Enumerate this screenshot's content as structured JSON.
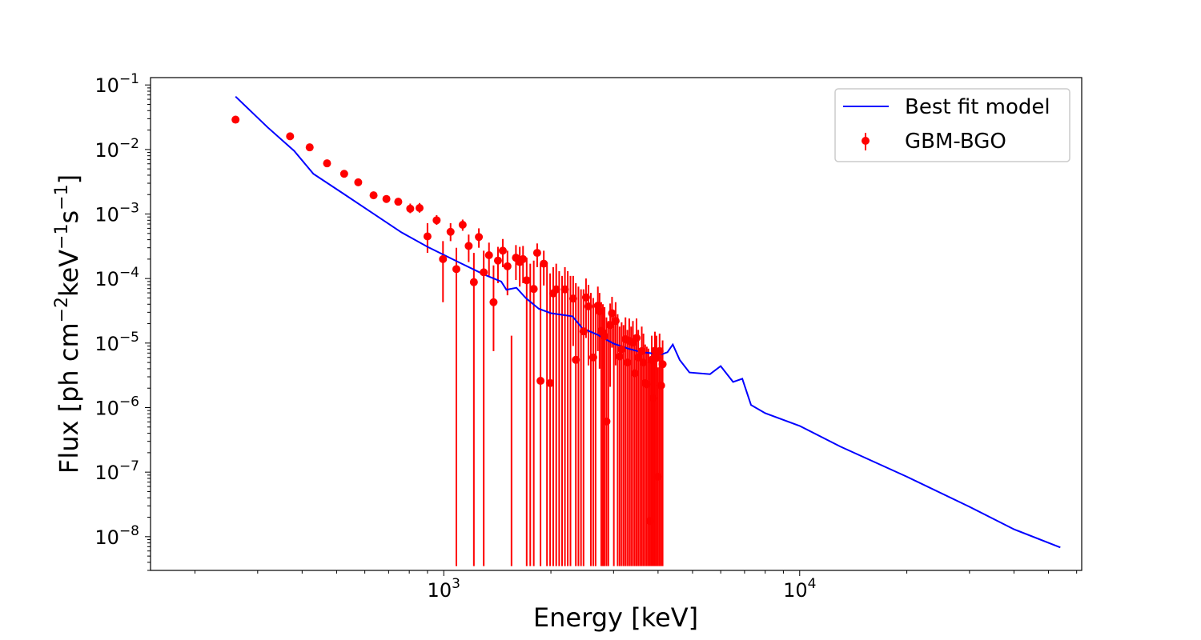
{
  "chart_data": {
    "type": "scatter",
    "xlabel": "Energy [keV]",
    "ylabel": "Flux [ph cm^-2 keV^-1 s^-1]",
    "ylabel_parts": {
      "a": "Flux [ph cm",
      "e1": "−2",
      "b": "keV",
      "e2": "−1",
      "c": "s",
      "e3": "−1",
      "d": "]"
    },
    "x_scale": "log",
    "y_scale": "log",
    "xlim": [
      150,
      62000
    ],
    "ylim": [
      3e-09,
      0.13
    ],
    "x_ticks": [
      {
        "base": "10",
        "exp": "3",
        "value": 1000
      },
      {
        "base": "10",
        "exp": "4",
        "value": 10000
      }
    ],
    "y_ticks": [
      {
        "base": "10",
        "exp": "−1",
        "value": 0.1
      },
      {
        "base": "10",
        "exp": "−2",
        "value": 0.01
      },
      {
        "base": "10",
        "exp": "−3",
        "value": 0.001
      },
      {
        "base": "10",
        "exp": "−4",
        "value": 0.0001
      },
      {
        "base": "10",
        "exp": "−5",
        "value": 1e-05
      },
      {
        "base": "10",
        "exp": "−6",
        "value": 1e-06
      },
      {
        "base": "10",
        "exp": "−7",
        "value": 1e-07
      },
      {
        "base": "10",
        "exp": "−8",
        "value": 1e-08
      }
    ],
    "legend": {
      "position": "upper right",
      "entries": [
        "Best fit model",
        "GBM-BGO"
      ]
    },
    "series": [
      {
        "name": "Best fit model",
        "kind": "line",
        "color": "#0000ff",
        "points": [
          [
            260,
            0.066
          ],
          [
            320,
            0.022
          ],
          [
            380,
            0.0095
          ],
          [
            430,
            0.0042
          ],
          [
            520,
            0.0021
          ],
          [
            620,
            0.0011
          ],
          [
            760,
            0.00052
          ],
          [
            900,
            0.00031
          ],
          [
            1100,
            0.00018
          ],
          [
            1300,
            0.000115
          ],
          [
            1450,
            9e-05
          ],
          [
            1500,
            6.7e-05
          ],
          [
            1600,
            7.2e-05
          ],
          [
            1700,
            5e-05
          ],
          [
            1850,
            3.4e-05
          ],
          [
            2000,
            2.9e-05
          ],
          [
            2300,
            2.6e-05
          ],
          [
            2450,
            1.7e-05
          ],
          [
            2700,
            1.35e-05
          ],
          [
            3000,
            9.8e-06
          ],
          [
            3300,
            8.2e-06
          ],
          [
            3600,
            7.2e-06
          ],
          [
            4100,
            6.7e-06
          ],
          [
            4250,
            7.2e-06
          ],
          [
            4400,
            9.5e-06
          ],
          [
            4600,
            5.5e-06
          ],
          [
            4900,
            3.5e-06
          ],
          [
            5600,
            3.3e-06
          ],
          [
            6000,
            4.4e-06
          ],
          [
            6500,
            2.5e-06
          ],
          [
            6900,
            2.8e-06
          ],
          [
            7300,
            1.1e-06
          ],
          [
            8000,
            8.2e-07
          ],
          [
            10000,
            5.2e-07
          ],
          [
            13000,
            2.5e-07
          ],
          [
            20000,
            8.5e-08
          ],
          [
            30000,
            2.9e-08
          ],
          [
            40000,
            1.3e-08
          ],
          [
            54000,
            6.8e-09
          ]
        ]
      },
      {
        "name": "GBM-BGO",
        "kind": "errorbar",
        "color": "#ff0000",
        "points": [
          {
            "x": 260,
            "y": 0.029,
            "lo": 0.029,
            "hi": 0.029
          },
          {
            "x": 370,
            "y": 0.016,
            "lo": 0.016,
            "hi": 0.016
          },
          {
            "x": 420,
            "y": 0.0108,
            "lo": 0.0108,
            "hi": 0.0108
          },
          {
            "x": 470,
            "y": 0.0061,
            "lo": 0.0061,
            "hi": 0.0061
          },
          {
            "x": 525,
            "y": 0.0042,
            "lo": 0.0042,
            "hi": 0.0042
          },
          {
            "x": 575,
            "y": 0.0031,
            "lo": 0.0031,
            "hi": 0.0031
          },
          {
            "x": 635,
            "y": 0.00195,
            "lo": 0.00195,
            "hi": 0.00195
          },
          {
            "x": 690,
            "y": 0.00171,
            "lo": 0.00171,
            "hi": 0.00171
          },
          {
            "x": 745,
            "y": 0.00155,
            "lo": 0.00155,
            "hi": 0.00155
          },
          {
            "x": 805,
            "y": 0.00121,
            "lo": 0.00103,
            "hi": 0.00145
          },
          {
            "x": 855,
            "y": 0.00124,
            "lo": 0.00105,
            "hi": 0.00148
          },
          {
            "x": 900,
            "y": 0.00045,
            "lo": 0.00025,
            "hi": 0.00072
          },
          {
            "x": 955,
            "y": 0.0008,
            "lo": 0.00068,
            "hi": 0.00096
          },
          {
            "x": 995,
            "y": 0.0002,
            "lo": 4.3e-05,
            "hi": 0.00038
          },
          {
            "x": 1045,
            "y": 0.00053,
            "lo": 0.00038,
            "hi": 0.00072
          },
          {
            "x": 1085,
            "y": 0.00014,
            "lo": 3.5e-09,
            "hi": 0.0003
          },
          {
            "x": 1130,
            "y": 0.00068,
            "lo": 0.00055,
            "hi": 0.00082
          },
          {
            "x": 1175,
            "y": 0.00032,
            "lo": 0.00018,
            "hi": 0.00048
          },
          {
            "x": 1215,
            "y": 8.8e-05,
            "lo": 3.5e-09,
            "hi": 0.00025
          },
          {
            "x": 1255,
            "y": 0.00044,
            "lo": 0.0003,
            "hi": 0.0006
          },
          {
            "x": 1295,
            "y": 0.000125,
            "lo": 3.5e-09,
            "hi": 0.00027
          },
          {
            "x": 1340,
            "y": 0.00023,
            "lo": 0.00011,
            "hi": 0.00036
          },
          {
            "x": 1380,
            "y": 4.3e-05,
            "lo": 7.5e-06,
            "hi": 0.00016
          },
          {
            "x": 1420,
            "y": 0.00019,
            "lo": 8.5e-05,
            "hi": 0.00031
          },
          {
            "x": 1465,
            "y": 0.00027,
            "lo": 0.00015,
            "hi": 0.00041
          },
          {
            "x": 1510,
            "y": 0.000155,
            "lo": 5.5e-05,
            "hi": 0.00027
          },
          {
            "x": 1550,
            "y": 0.0,
            "lo": 3.5e-09,
            "hi": 1.3e-05
          },
          {
            "x": 1595,
            "y": 0.00021,
            "lo": 9.5e-05,
            "hi": 0.00033
          },
          {
            "x": 1635,
            "y": 0.00018,
            "lo": 7.5e-05,
            "hi": 0.00031
          },
          {
            "x": 1670,
            "y": 0.0002,
            "lo": 8.5e-05,
            "hi": 0.00032
          },
          {
            "x": 1710,
            "y": 9.4e-05,
            "lo": 3.5e-09,
            "hi": 0.00021
          },
          {
            "x": 1750,
            "y": 0.0,
            "lo": 3.5e-09,
            "hi": 0.00017
          },
          {
            "x": 1790,
            "y": 6.9e-05,
            "lo": 3.5e-09,
            "hi": 0.00019
          },
          {
            "x": 1830,
            "y": 0.00025,
            "lo": 0.00015,
            "hi": 0.00035
          },
          {
            "x": 1870,
            "y": 2.6e-06,
            "lo": 3.5e-09,
            "hi": 0.00017
          },
          {
            "x": 1910,
            "y": 0.00017,
            "lo": 7.8e-05,
            "hi": 0.00027
          },
          {
            "x": 1950,
            "y": 0.0,
            "lo": 3.5e-09,
            "hi": 0.00018
          },
          {
            "x": 1990,
            "y": 2.4e-06,
            "lo": 3.5e-09,
            "hi": 0.00012
          },
          {
            "x": 2030,
            "y": 5.9e-05,
            "lo": 3.5e-09,
            "hi": 0.00015
          },
          {
            "x": 2070,
            "y": 6.8e-05,
            "lo": 3.5e-09,
            "hi": 0.00017
          },
          {
            "x": 2110,
            "y": 0.0,
            "lo": 3.5e-09,
            "hi": 0.00013
          },
          {
            "x": 2150,
            "y": 0.0,
            "lo": 3.5e-09,
            "hi": 0.00011
          },
          {
            "x": 2190,
            "y": 6.8e-05,
            "lo": 3.5e-09,
            "hi": 0.00015
          },
          {
            "x": 2230,
            "y": 0.0,
            "lo": 3.5e-09,
            "hi": 0.00013
          },
          {
            "x": 2270,
            "y": 0.0,
            "lo": 3.5e-09,
            "hi": 0.00011
          },
          {
            "x": 2310,
            "y": 4.9e-05,
            "lo": 9e-06,
            "hi": 0.00011
          },
          {
            "x": 2350,
            "y": 5.5e-06,
            "lo": 3.5e-09,
            "hi": 8.5e-05
          },
          {
            "x": 2390,
            "y": 0.0,
            "lo": 3.5e-09,
            "hi": 7.5e-05
          },
          {
            "x": 2430,
            "y": 0.0,
            "lo": 3.5e-09,
            "hi": 6.8e-05
          },
          {
            "x": 2470,
            "y": 1.52e-05,
            "lo": 3.5e-09,
            "hi": 6.8e-05
          },
          {
            "x": 2510,
            "y": 5.1e-05,
            "lo": 1.2e-05,
            "hi": 0.0001
          },
          {
            "x": 2550,
            "y": 3.7e-05,
            "lo": 4.5e-06,
            "hi": 8e-05
          },
          {
            "x": 2590,
            "y": 0.0,
            "lo": 3.5e-09,
            "hi": 6e-05
          },
          {
            "x": 2630,
            "y": 6e-06,
            "lo": 3.5e-09,
            "hi": 5e-05
          },
          {
            "x": 2670,
            "y": 0.0,
            "lo": 3.5e-09,
            "hi": 4e-05
          },
          {
            "x": 2710,
            "y": 3.8e-05,
            "lo": 7.5e-06,
            "hi": 7.5e-05
          },
          {
            "x": 2740,
            "y": 3.1e-05,
            "lo": 4e-06,
            "hi": 6e-05
          },
          {
            "x": 2770,
            "y": 1.55e-05,
            "lo": 3.5e-09,
            "hi": 4.3e-05
          },
          {
            "x": 2800,
            "y": 1.45e-05,
            "lo": 3.5e-09,
            "hi": 4e-05
          },
          {
            "x": 2830,
            "y": 1.28e-05,
            "lo": 3.5e-09,
            "hi": 3.6e-05
          },
          {
            "x": 2865,
            "y": 6.1e-07,
            "lo": 3.5e-09,
            "hi": 2.5e-05
          },
          {
            "x": 2900,
            "y": 0.0,
            "lo": 3.5e-09,
            "hi": 2.2e-05
          },
          {
            "x": 2935,
            "y": 1.9e-05,
            "lo": 2.1e-06,
            "hi": 4.1e-05
          },
          {
            "x": 2970,
            "y": 2.9e-05,
            "lo": 8.5e-06,
            "hi": 5.2e-05
          },
          {
            "x": 3005,
            "y": 0.0,
            "lo": 3.5e-09,
            "hi": 3.1e-05
          },
          {
            "x": 3040,
            "y": 2.2e-05,
            "lo": 4.5e-06,
            "hi": 4.3e-05
          },
          {
            "x": 3080,
            "y": 0.0,
            "lo": 3.5e-09,
            "hi": 2.8e-05
          },
          {
            "x": 3120,
            "y": 6.2e-06,
            "lo": 3.5e-09,
            "hi": 1.8e-05
          },
          {
            "x": 3160,
            "y": 8e-06,
            "lo": 3.5e-09,
            "hi": 2.1e-05
          },
          {
            "x": 3200,
            "y": 0.0,
            "lo": 3.5e-09,
            "hi": 1.9e-05
          },
          {
            "x": 3240,
            "y": 1.15e-05,
            "lo": 3.5e-09,
            "hi": 2.5e-05
          },
          {
            "x": 3280,
            "y": 5e-06,
            "lo": 3.5e-09,
            "hi": 1.6e-05
          },
          {
            "x": 3320,
            "y": 1.08e-05,
            "lo": 3.5e-09,
            "hi": 2.4e-05
          },
          {
            "x": 3360,
            "y": 0.0,
            "lo": 3.5e-09,
            "hi": 1.8e-05
          },
          {
            "x": 3400,
            "y": 1.01e-05,
            "lo": 3.5e-09,
            "hi": 2.2e-05
          },
          {
            "x": 3440,
            "y": 3.4e-06,
            "lo": 3.5e-09,
            "hi": 1.2e-05
          },
          {
            "x": 3480,
            "y": 1.2e-05,
            "lo": 3.5e-09,
            "hi": 2.4e-05
          },
          {
            "x": 3520,
            "y": 6e-06,
            "lo": 3.5e-09,
            "hi": 1.6e-05
          },
          {
            "x": 3560,
            "y": 0.0,
            "lo": 3.5e-09,
            "hi": 7.1e-06
          },
          {
            "x": 3600,
            "y": 7.5e-06,
            "lo": 3.5e-09,
            "hi": 1.8e-05
          },
          {
            "x": 3640,
            "y": 5e-06,
            "lo": 3.5e-09,
            "hi": 1.4e-05
          },
          {
            "x": 3680,
            "y": 2.4e-06,
            "lo": 3.5e-09,
            "hi": 9.5e-06
          },
          {
            "x": 3720,
            "y": 2.3e-06,
            "lo": 3.5e-09,
            "hi": 8.8e-06
          },
          {
            "x": 3760,
            "y": 0.0,
            "lo": 3.5e-09,
            "hi": 8.2e-06
          },
          {
            "x": 3800,
            "y": 1.75e-08,
            "lo": 3.5e-09,
            "hi": 5.8e-06
          },
          {
            "x": 3840,
            "y": 5.5e-06,
            "lo": 3.5e-09,
            "hi": 1.3e-05
          },
          {
            "x": 3880,
            "y": 1.4e-06,
            "lo": 3.5e-09,
            "hi": 7.1e-06
          },
          {
            "x": 3920,
            "y": 7.6e-06,
            "lo": 3.5e-09,
            "hi": 1.5e-05
          },
          {
            "x": 3960,
            "y": 5.9e-06,
            "lo": 3.5e-09,
            "hi": 1.3e-05
          },
          {
            "x": 4000,
            "y": 8.5e-08,
            "lo": 3.5e-09,
            "hi": 4.2e-06
          },
          {
            "x": 4040,
            "y": 7.5e-06,
            "lo": 3.5e-09,
            "hi": 1.4e-05
          },
          {
            "x": 4080,
            "y": 2.2e-06,
            "lo": 3.5e-09,
            "hi": 8.5e-06
          },
          {
            "x": 4120,
            "y": 4.7e-06,
            "lo": 3.5e-09,
            "hi": 1.1e-05
          }
        ]
      }
    ]
  }
}
